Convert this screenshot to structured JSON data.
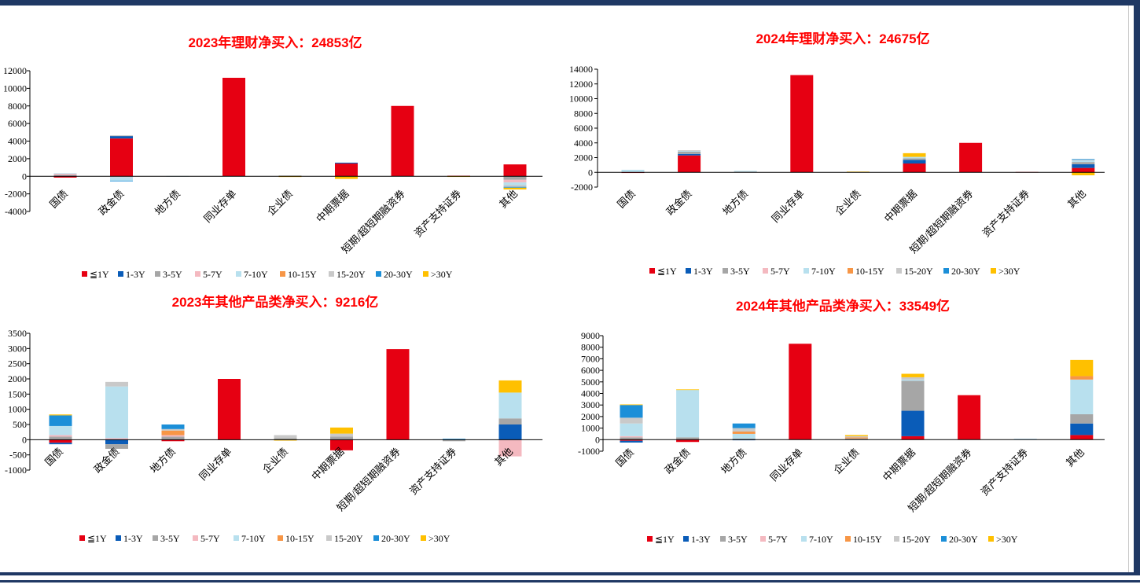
{
  "colors": {
    "frame": "#1f3864",
    "title": "#ff0000",
    "series": [
      "#e60012",
      "#0a5cb8",
      "#a6a6a6",
      "#f4b9c0",
      "#b8e0ee",
      "#f79646",
      "#c9c9c9",
      "#1c8fd8",
      "#ffc000"
    ]
  },
  "chart_data": [
    {
      "type": "bar",
      "stacked": true,
      "title": "2023年理财净买入：24853亿",
      "categories": [
        "国债",
        "政金债",
        "地方债",
        "同业存单",
        "企业债",
        "中期票据",
        "短期/超短期融资券",
        "资产支持证券",
        "其他"
      ],
      "yticks": [
        "12000",
        "10000",
        "8000",
        "6000",
        "4000",
        "2000",
        "0",
        "-2000",
        "-4000"
      ],
      "ylim": [
        -4000,
        12000
      ],
      "series": [
        {
          "name": "≦1Y",
          "values": [
            -150,
            4300,
            0,
            11200,
            60,
            1450,
            8000,
            60,
            1350
          ]
        },
        {
          "name": "1-3Y",
          "values": [
            50,
            300,
            0,
            0,
            0,
            100,
            0,
            0,
            0
          ]
        },
        {
          "name": "3-5Y",
          "values": [
            100,
            30,
            0,
            0,
            20,
            0,
            0,
            0,
            -400
          ]
        },
        {
          "name": "5-7Y",
          "values": [
            150,
            -100,
            0,
            0,
            0,
            0,
            0,
            0,
            -300
          ]
        },
        {
          "name": "7-10Y",
          "values": [
            50,
            -400,
            30,
            0,
            0,
            0,
            0,
            0,
            -300
          ]
        },
        {
          "name": "10-15Y",
          "values": [
            0,
            0,
            0,
            0,
            0,
            0,
            0,
            0,
            0
          ]
        },
        {
          "name": "15-20Y",
          "values": [
            0,
            0,
            0,
            0,
            0,
            0,
            0,
            0,
            -200
          ]
        },
        {
          "name": "20-30Y",
          "values": [
            0,
            -50,
            0,
            0,
            0,
            0,
            0,
            0,
            -100
          ]
        },
        {
          "name": ">30Y",
          "values": [
            0,
            0,
            0,
            0,
            -80,
            -300,
            0,
            -50,
            -200
          ]
        }
      ],
      "legend": [
        "≦1Y",
        "1-3Y",
        "3-5Y",
        "5-7Y",
        "7-10Y",
        "10-15Y",
        "15-20Y",
        "20-30Y",
        ">30Y"
      ]
    },
    {
      "type": "bar",
      "stacked": true,
      "title": "2024年理财净买入：24675亿",
      "categories": [
        "国债",
        "政金债",
        "地方债",
        "同业存单",
        "企业债",
        "中期票据",
        "短期/超短期融资券",
        "资产支持证券",
        "其他"
      ],
      "yticks": [
        "14000",
        "12000",
        "10000",
        "8000",
        "6000",
        "4000",
        "2000",
        "0",
        "-2000"
      ],
      "ylim": [
        -2000,
        14000
      ],
      "series": [
        {
          "name": "≦1Y",
          "values": [
            -50,
            2300,
            0,
            13200,
            0,
            1200,
            4000,
            50,
            600
          ]
        },
        {
          "name": "1-3Y",
          "values": [
            0,
            200,
            0,
            0,
            0,
            500,
            0,
            0,
            500
          ]
        },
        {
          "name": "3-5Y",
          "values": [
            50,
            300,
            100,
            0,
            0,
            200,
            0,
            0,
            300
          ]
        },
        {
          "name": "5-7Y",
          "values": [
            0,
            0,
            0,
            0,
            0,
            0,
            0,
            0,
            0
          ]
        },
        {
          "name": "7-10Y",
          "values": [
            300,
            100,
            100,
            0,
            0,
            200,
            0,
            0,
            200
          ]
        },
        {
          "name": "10-15Y",
          "values": [
            0,
            0,
            0,
            0,
            0,
            0,
            0,
            0,
            0
          ]
        },
        {
          "name": "15-20Y",
          "values": [
            0,
            100,
            0,
            0,
            0,
            0,
            0,
            0,
            100
          ]
        },
        {
          "name": "20-30Y",
          "values": [
            0,
            0,
            0,
            0,
            0,
            0,
            0,
            0,
            100
          ]
        },
        {
          "name": ">30Y",
          "values": [
            0,
            0,
            0,
            0,
            100,
            500,
            0,
            0,
            -400
          ]
        }
      ],
      "legend": [
        "≦1Y",
        "1-3Y",
        "3-5Y",
        "5-7Y",
        "7-10Y",
        "10-15Y",
        "15-20Y",
        "20-30Y",
        ">30Y"
      ]
    },
    {
      "type": "bar",
      "stacked": true,
      "title": "2023年其他产品类净买入：9216亿",
      "categories": [
        "国债",
        "政金债",
        "地方债",
        "同业存单",
        "企业债",
        "中期票据",
        "短期/超短期融资券",
        "资产支持证券",
        "其他"
      ],
      "yticks": [
        "3500",
        "3000",
        "2500",
        "2000",
        "1500",
        "1000",
        "500",
        "0",
        "-500",
        "-1000"
      ],
      "ylim": [
        -1000,
        3500
      ],
      "series": [
        {
          "name": "≦1Y",
          "values": [
            -100,
            0,
            -50,
            2000,
            0,
            -350,
            2980,
            0,
            0
          ]
        },
        {
          "name": "1-3Y",
          "values": [
            -50,
            -150,
            0,
            0,
            0,
            0,
            0,
            0,
            500
          ]
        },
        {
          "name": "3-5Y",
          "values": [
            100,
            -150,
            100,
            0,
            50,
            100,
            0,
            -50,
            200
          ]
        },
        {
          "name": "5-7Y",
          "values": [
            50,
            50,
            50,
            0,
            0,
            0,
            0,
            0,
            -550
          ]
        },
        {
          "name": "7-10Y",
          "values": [
            300,
            1700,
            0,
            0,
            0,
            0,
            0,
            0,
            850
          ]
        },
        {
          "name": "10-15Y",
          "values": [
            0,
            0,
            150,
            0,
            0,
            0,
            0,
            0,
            0
          ]
        },
        {
          "name": "15-20Y",
          "values": [
            0,
            150,
            50,
            0,
            100,
            100,
            0,
            0,
            0
          ]
        },
        {
          "name": "20-30Y",
          "values": [
            350,
            0,
            150,
            0,
            0,
            0,
            0,
            30,
            0
          ]
        },
        {
          "name": ">30Y",
          "values": [
            30,
            0,
            0,
            0,
            -30,
            200,
            0,
            0,
            400
          ]
        }
      ],
      "legend": [
        "≦1Y",
        "1-3Y",
        "3-5Y",
        "5-7Y",
        "7-10Y",
        "10-15Y",
        "15-20Y",
        "20-30Y",
        ">30Y"
      ]
    },
    {
      "type": "bar",
      "stacked": true,
      "title": "2024年其他产品类净买入：33549亿",
      "categories": [
        "国债",
        "政金债",
        "地方债",
        "同业存单",
        "企业债",
        "中期票据",
        "短期/超短期融资券",
        "资产支持证券",
        "其他"
      ],
      "yticks": [
        "9000",
        "8000",
        "7000",
        "6000",
        "5000",
        "4000",
        "3000",
        "2000",
        "1000",
        "0",
        "-1000"
      ],
      "ylim": [
        -1000,
        9000
      ],
      "series": [
        {
          "name": "≦1Y",
          "values": [
            -100,
            -200,
            0,
            8300,
            0,
            300,
            3850,
            0,
            400
          ]
        },
        {
          "name": "1-3Y",
          "values": [
            -150,
            0,
            -50,
            0,
            0,
            2200,
            0,
            0,
            1000
          ]
        },
        {
          "name": "3-5Y",
          "values": [
            200,
            200,
            100,
            0,
            100,
            2600,
            0,
            0,
            800
          ]
        },
        {
          "name": "5-7Y",
          "values": [
            100,
            0,
            0,
            0,
            0,
            0,
            0,
            0,
            0
          ]
        },
        {
          "name": "7-10Y",
          "values": [
            1100,
            4100,
            400,
            0,
            0,
            100,
            0,
            0,
            3000
          ]
        },
        {
          "name": "10-15Y",
          "values": [
            0,
            0,
            200,
            0,
            100,
            0,
            0,
            0,
            300
          ]
        },
        {
          "name": "15-20Y",
          "values": [
            500,
            0,
            300,
            0,
            100,
            200,
            0,
            0,
            0
          ]
        },
        {
          "name": "20-30Y",
          "values": [
            1100,
            0,
            400,
            0,
            0,
            0,
            0,
            50,
            0
          ]
        },
        {
          "name": ">30Y",
          "values": [
            50,
            50,
            0,
            0,
            100,
            300,
            0,
            0,
            1400
          ]
        }
      ],
      "legend": [
        "≦1Y",
        "1-3Y",
        "3-5Y",
        "5-7Y",
        "7-10Y",
        "10-15Y",
        "15-20Y",
        "20-30Y",
        ">30Y"
      ]
    }
  ]
}
